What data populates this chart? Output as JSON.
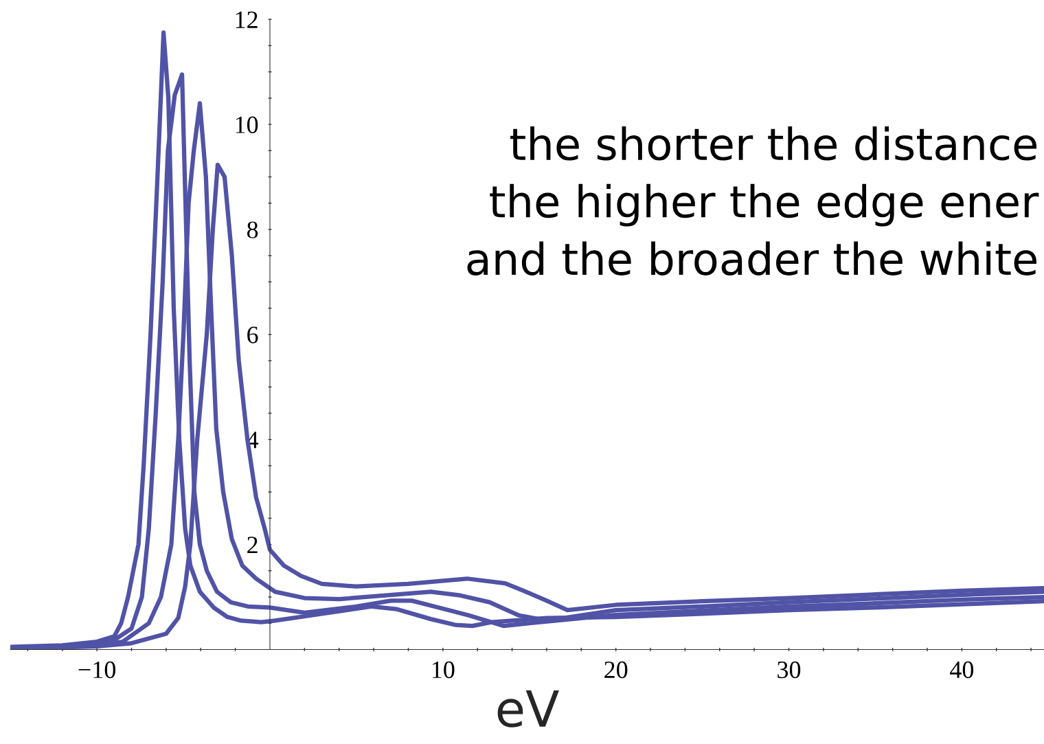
{
  "chart_data": {
    "type": "line",
    "xlabel": "eV",
    "xlim": [
      -15,
      44.75
    ],
    "ylim": [
      0,
      12
    ],
    "xticks": [
      {
        "value": -14,
        "label": null
      },
      {
        "value": -12,
        "label": null
      },
      {
        "value": -10,
        "label": "−10"
      },
      {
        "value": -8,
        "label": null
      },
      {
        "value": -6,
        "label": null
      },
      {
        "value": -4,
        "label": null
      },
      {
        "value": -2,
        "label": null
      },
      {
        "value": 2,
        "label": null
      },
      {
        "value": 4,
        "label": null
      },
      {
        "value": 6,
        "label": null
      },
      {
        "value": 8,
        "label": null
      },
      {
        "value": 10,
        "label": "10"
      },
      {
        "value": 12,
        "label": null
      },
      {
        "value": 14,
        "label": null
      },
      {
        "value": 16,
        "label": null
      },
      {
        "value": 18,
        "label": null
      },
      {
        "value": 20,
        "label": "20"
      },
      {
        "value": 22,
        "label": null
      },
      {
        "value": 24,
        "label": null
      },
      {
        "value": 26,
        "label": null
      },
      {
        "value": 28,
        "label": null
      },
      {
        "value": 30,
        "label": "30"
      },
      {
        "value": 32,
        "label": null
      },
      {
        "value": 34,
        "label": null
      },
      {
        "value": 36,
        "label": null
      },
      {
        "value": 38,
        "label": null
      },
      {
        "value": 40,
        "label": "40"
      },
      {
        "value": 42,
        "label": null
      },
      {
        "value": 44,
        "label": null
      }
    ],
    "yticks": [
      {
        "value": 0.5,
        "label": null
      },
      {
        "value": 1,
        "label": null
      },
      {
        "value": 1.5,
        "label": null
      },
      2,
      {
        "value": 2.5,
        "label": null
      },
      {
        "value": 3,
        "label": null
      },
      {
        "value": 3.5,
        "label": null
      },
      4,
      {
        "value": 4.5,
        "label": null
      },
      {
        "value": 5,
        "label": null
      },
      {
        "value": 5.5,
        "label": null
      },
      6,
      {
        "value": 6.5,
        "label": null
      },
      {
        "value": 7,
        "label": null
      },
      {
        "value": 7.5,
        "label": null
      },
      8,
      {
        "value": 8.5,
        "label": null
      },
      {
        "value": 9,
        "label": null
      },
      {
        "value": 9.5,
        "label": null
      },
      10,
      {
        "value": 10.5,
        "label": null
      },
      {
        "value": 11,
        "label": null
      },
      {
        "value": 11.5,
        "label": null
      },
      12
    ],
    "grid": false,
    "annotations": [
      "the shorter the distance\nthe higher the edge ener\nand the broader the white"
    ],
    "series": [
      {
        "color": "#5053a6",
        "x": [
          -15,
          -12,
          -10,
          -9,
          -8.6,
          -8.2,
          -7.6,
          -7.3,
          -6.9,
          -6.5,
          -6.15,
          -5.87,
          -5.56,
          -5.24,
          -4.9,
          -4.6,
          -4.05,
          -3.25,
          -2.46,
          -1.67,
          -0.5,
          0.3,
          3,
          5.9,
          7.3,
          9.3,
          10.7,
          11.7,
          12.8,
          16,
          20,
          25,
          30,
          35,
          40,
          44.75
        ],
        "values": [
          0.05,
          0.08,
          0.15,
          0.25,
          0.5,
          1.0,
          2,
          3.5,
          6,
          9,
          11.75,
          10.5,
          6.5,
          4,
          2.3,
          1.6,
          1.1,
          0.8,
          0.62,
          0.55,
          0.52,
          0.55,
          0.68,
          0.82,
          0.77,
          0.58,
          0.47,
          0.45,
          0.52,
          0.6,
          0.62,
          0.68,
          0.75,
          0.8,
          0.86,
          0.92
        ]
      },
      {
        "color": "#5053a6",
        "x": [
          -15,
          -12,
          -10,
          -9,
          -8,
          -7.4,
          -7.0,
          -6.6,
          -6.2,
          -5.9,
          -5.5,
          -5.08,
          -4.84,
          -4.64,
          -4.37,
          -4.05,
          -3.65,
          -3.06,
          -2.26,
          -1.27,
          0,
          2,
          5,
          7,
          8.2,
          9.5,
          11.5,
          13.5,
          15,
          20,
          25,
          30,
          35,
          40,
          44.75
        ],
        "values": [
          0.04,
          0.06,
          0.1,
          0.18,
          0.4,
          1,
          2.3,
          4.5,
          7,
          9.5,
          10.56,
          10.95,
          8,
          5.5,
          3,
          2,
          1.5,
          1.1,
          0.9,
          0.82,
          0.8,
          0.7,
          0.82,
          0.93,
          0.93,
          0.82,
          0.65,
          0.45,
          0.5,
          0.66,
          0.74,
          0.82,
          0.88,
          0.95,
          1.0
        ]
      },
      {
        "color": "#5053a6",
        "x": [
          -15,
          -12,
          -10,
          -8.5,
          -7,
          -6.3,
          -5.7,
          -5.3,
          -5.0,
          -4.7,
          -4.4,
          -4.05,
          -3.7,
          -3.4,
          -3.1,
          -2.7,
          -2.2,
          -1.6,
          -0.8,
          0.3,
          2,
          4,
          9.3,
          11,
          12.7,
          14.4,
          16,
          20,
          25,
          30,
          35,
          40,
          44.75
        ],
        "values": [
          0.03,
          0.05,
          0.08,
          0.15,
          0.5,
          1,
          2,
          4,
          6,
          8.5,
          9.5,
          10.4,
          9,
          6.5,
          4.2,
          3,
          2.1,
          1.6,
          1.35,
          1.1,
          0.98,
          0.96,
          1.1,
          1.03,
          0.9,
          0.65,
          0.55,
          0.75,
          0.82,
          0.9,
          0.97,
          1.04,
          1.1
        ]
      },
      {
        "color": "#5053a6",
        "x": [
          -15,
          -12,
          -10,
          -8,
          -6,
          -5.3,
          -4.9,
          -4.6,
          -4.2,
          -3.65,
          -3.3,
          -3.02,
          -2.62,
          -2.2,
          -1.8,
          -1.3,
          -0.8,
          -0.3,
          0,
          0.8,
          1.8,
          3,
          5,
          8,
          11.4,
          13.6,
          14.8,
          16,
          17.2,
          20,
          25,
          30,
          35,
          40,
          44.75
        ],
        "values": [
          0.02,
          0.04,
          0.06,
          0.12,
          0.3,
          0.6,
          1.2,
          2,
          4,
          6,
          8,
          9.23,
          9.0,
          7.5,
          5.5,
          4,
          2.9,
          2.3,
          1.9,
          1.6,
          1.4,
          1.25,
          1.2,
          1.25,
          1.35,
          1.26,
          1.1,
          0.93,
          0.75,
          0.85,
          0.92,
          0.98,
          1.05,
          1.12,
          1.17
        ]
      }
    ]
  }
}
